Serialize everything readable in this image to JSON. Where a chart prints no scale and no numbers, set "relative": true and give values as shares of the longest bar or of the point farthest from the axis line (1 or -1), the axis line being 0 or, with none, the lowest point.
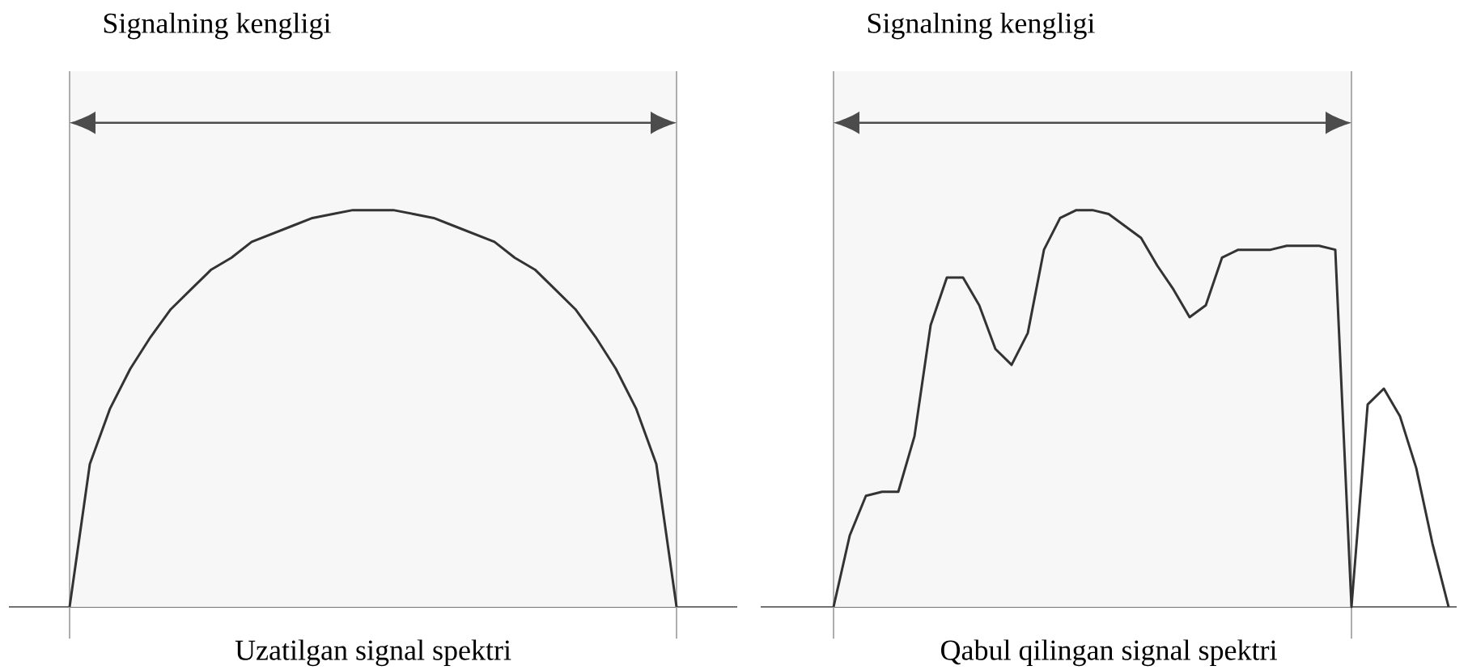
{
  "chart_data": [
    {
      "type": "line",
      "relative": true,
      "tick_labels": false,
      "xlabel": "Uzatilgan signal spektri",
      "categories": [
        null,
        null,
        null,
        null,
        null,
        null,
        null,
        null,
        null,
        null,
        null,
        null,
        null,
        null,
        null,
        null,
        null,
        null,
        null,
        null,
        null,
        null,
        null,
        null,
        null,
        null,
        null,
        null,
        null,
        null,
        null,
        null,
        null,
        null,
        null,
        null,
        null
      ],
      "series": [
        {
          "color": "#333333",
          "values": [
            null,
            null,
            null,
            0,
            0.36,
            0.5,
            0.6,
            0.68,
            0.75,
            0.8,
            0.85,
            0.88,
            0.92,
            0.94,
            0.96,
            0.98,
            0.99,
            1.0,
            1.0,
            1.0,
            0.99,
            0.98,
            0.96,
            0.94,
            0.92,
            0.88,
            0.85,
            0.8,
            0.75,
            0.68,
            0.6,
            0.5,
            0.36,
            0,
            null,
            null,
            null
          ]
        }
      ],
      "annotations": [
        "Signalning kengligi"
      ]
    },
    {
      "type": "line",
      "relative": true,
      "tick_labels": false,
      "xlabel": "Qabul qilingan signal spektri",
      "categories": [
        null,
        null,
        null,
        null,
        null,
        null,
        null,
        null,
        null,
        null,
        null,
        null,
        null,
        null,
        null,
        null,
        null,
        null,
        null,
        null,
        null,
        null,
        null,
        null,
        null,
        null,
        null,
        null,
        null,
        null,
        null,
        null,
        null,
        null,
        null,
        null,
        null,
        null,
        null,
        null,
        null,
        null,
        null
      ],
      "series": [
        {
          "color": "#333333",
          "values": [
            null,
            null,
            null,
            null,
            0,
            0.18,
            0.28,
            0.29,
            0.29,
            0.43,
            0.71,
            0.83,
            0.83,
            0.76,
            0.65,
            0.61,
            0.69,
            0.9,
            0.98,
            1.0,
            1.0,
            0.99,
            0.96,
            0.93,
            0.86,
            0.8,
            0.73,
            0.76,
            0.88,
            0.9,
            0.9,
            0.9,
            0.91,
            0.91,
            0.91,
            0.9,
            0,
            0.51,
            0.55,
            0.48,
            0.35,
            0.16,
            0
          ]
        }
      ],
      "annotations": [
        "Signalning kengligi"
      ]
    }
  ]
}
